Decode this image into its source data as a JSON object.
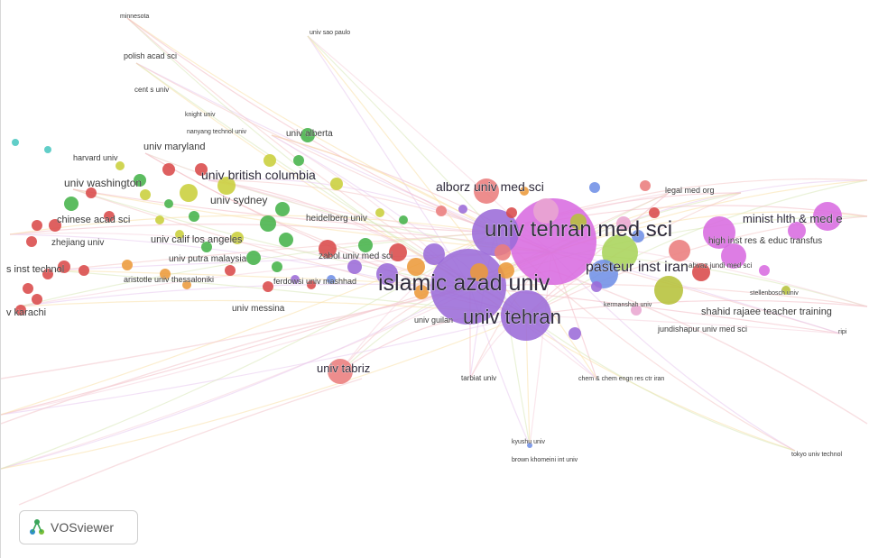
{
  "app": {
    "brand": "VOSviewer",
    "brand_icon": "vosviewer-logo-icon"
  },
  "colors": {
    "purple": "#9b6bd8",
    "magenta": "#d86be0",
    "red": "#d94a4a",
    "green": "#45b34a",
    "yellowgreen": "#c9cf3b",
    "orange": "#ec9a3a",
    "blue": "#6f8fe6",
    "cyan": "#4bc7c0",
    "salmon": "#ea7d7d",
    "pink": "#e9a6d0",
    "olive": "#b6c23a",
    "lime": "#a8d45a"
  },
  "labels": [
    {
      "id": "univ-tehran-med-sci",
      "text": "univ tehran med sci",
      "cluster": "purple"
    },
    {
      "id": "islamic-azad-univ",
      "text": "islamic azad univ",
      "cluster": "purple"
    },
    {
      "id": "univ-tehran",
      "text": "univ tehran",
      "cluster": "purple"
    },
    {
      "id": "pasteur-inst-iran",
      "text": "pasteur inst iran",
      "cluster": "magenta"
    },
    {
      "id": "alborz-univ-med-sci",
      "text": "alborz univ med sci",
      "cluster": "salmon"
    },
    {
      "id": "minist-hlth",
      "text": "minist hlth & med e",
      "cluster": "magenta"
    },
    {
      "id": "high-inst-res",
      "text": "high inst res & educ transfus",
      "cluster": "blue"
    },
    {
      "id": "legal-med-org",
      "text": "legal med org",
      "cluster": "purple"
    },
    {
      "id": "shahid-rajaee",
      "text": "shahid rajaee teacher training",
      "cluster": "olive"
    },
    {
      "id": "jundishapur",
      "text": "jundishapur univ med sci",
      "cluster": "olive"
    },
    {
      "id": "tabriz",
      "text": "univ tabriz",
      "cluster": "salmon"
    },
    {
      "id": "univ-british-columbia",
      "text": "univ british columbia",
      "cluster": "yellowgreen"
    },
    {
      "id": "univ-sydney",
      "text": "univ sydney",
      "cluster": "yellowgreen"
    },
    {
      "id": "univ-alberta",
      "text": "univ alberta",
      "cluster": "green"
    },
    {
      "id": "univ-maryland",
      "text": "univ maryland",
      "cluster": "yellowgreen"
    },
    {
      "id": "univ-washington",
      "text": "univ washington",
      "cluster": "green"
    },
    {
      "id": "chinese-acad-sci",
      "text": "chinese acad sci",
      "cluster": "red"
    },
    {
      "id": "zhejiang",
      "text": "zhejiang univ",
      "cluster": "red"
    },
    {
      "id": "univ-calif",
      "text": "univ calif los angeles",
      "cluster": "green"
    },
    {
      "id": "univ-putra",
      "text": "univ putra malaysia",
      "cluster": "green"
    },
    {
      "id": "aristotle",
      "text": "aristotle univ thessaloniki",
      "cluster": "orange"
    },
    {
      "id": "univ-messina",
      "text": "univ messina",
      "cluster": "red"
    },
    {
      "id": "heidelberg",
      "text": "heidelberg univ",
      "cluster": "green"
    },
    {
      "id": "zabol",
      "text": "zabol univ med sci",
      "cluster": "orange"
    },
    {
      "id": "tech-inst",
      "text": "s inst technol",
      "cluster": "red"
    },
    {
      "id": "karachi",
      "text": "v karachi",
      "cluster": "red"
    },
    {
      "id": "polish-acad",
      "text": "polish acad sci",
      "cluster": "green"
    },
    {
      "id": "cent-s-univ",
      "text": "cent s univ",
      "cluster": "yellowgreen"
    },
    {
      "id": "univ-sao-paulo",
      "text": "univ sao paulo",
      "cluster": "yellowgreen"
    },
    {
      "id": "minnesota",
      "text": "minnesota",
      "cluster": "yellowgreen"
    },
    {
      "id": "nanyang",
      "text": "nanyang technol univ",
      "cluster": "yellowgreen"
    },
    {
      "id": "tarbiat",
      "text": "tarbiat univ",
      "cluster": "purple"
    },
    {
      "id": "chem-chem-engn",
      "text": "chem & chem engn res ctr iran",
      "cluster": "purple"
    },
    {
      "id": "kyushu",
      "text": "kyushu univ",
      "cluster": "blue"
    },
    {
      "id": "brown",
      "text": "brown khomeini int univ",
      "cluster": "purple"
    },
    {
      "id": "tokyo",
      "text": "tokyo univ technol",
      "cluster": "purple"
    },
    {
      "id": "stellenbosch",
      "text": "stellenbosch univ",
      "cluster": "olive"
    },
    {
      "id": "ahvaz",
      "text": "ahvaz jundi med sci",
      "cluster": "red"
    },
    {
      "id": "ferdowsi",
      "text": "ferdowsi univ mashhad",
      "cluster": "red"
    },
    {
      "id": "univ-guilan",
      "text": "univ guilan",
      "cluster": "purple"
    },
    {
      "id": "ripi",
      "text": "ripi",
      "cluster": "olive"
    },
    {
      "id": "knight",
      "text": "knight univ",
      "cluster": "yellowgreen"
    },
    {
      "id": "harvard",
      "text": "harvard univ",
      "cluster": "green"
    },
    {
      "id": "kermanshah",
      "text": "kermanshah univ",
      "cluster": "pink"
    }
  ]
}
